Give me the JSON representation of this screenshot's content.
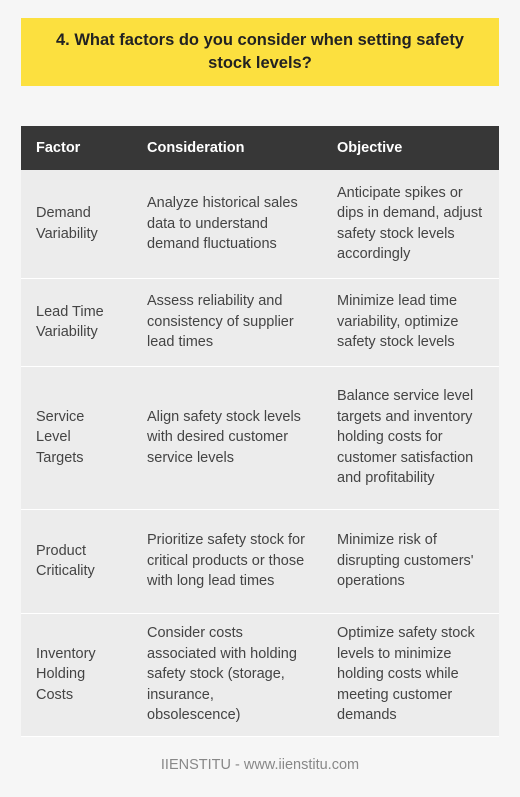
{
  "title": "4. What factors do you consider when setting safety stock levels?",
  "table": {
    "headers": [
      "Factor",
      "Consideration",
      "Objective"
    ],
    "rows": [
      {
        "factor": "Demand Variability",
        "consideration": "Analyze historical sales data to understand demand fluctuations",
        "objective": "Anticipate spikes or dips in demand, adjust safety stock levels accordingly"
      },
      {
        "factor": "Lead Time Variability",
        "consideration": "Assess reliability and consistency of supplier lead times",
        "objective": "Minimize lead time variability, optimize safety stock levels"
      },
      {
        "factor": "Service Level Targets",
        "consideration": "Align safety stock levels with desired customer service levels",
        "objective": "Balance service level targets and inventory holding costs for customer satisfaction and profitability"
      },
      {
        "factor": "Product Criticality",
        "consideration": "Prioritize safety stock for critical products or those with long lead times",
        "objective": "Minimize risk of disrupting customers' operations"
      },
      {
        "factor": "Inventory Holding Costs",
        "consideration": "Consider costs associated with holding safety stock (storage, insurance, obsolescence)",
        "objective": "Optimize safety stock levels to minimize holding costs while meeting customer demands"
      }
    ]
  },
  "footer": "IIENSTITU - www.iienstitu.com"
}
